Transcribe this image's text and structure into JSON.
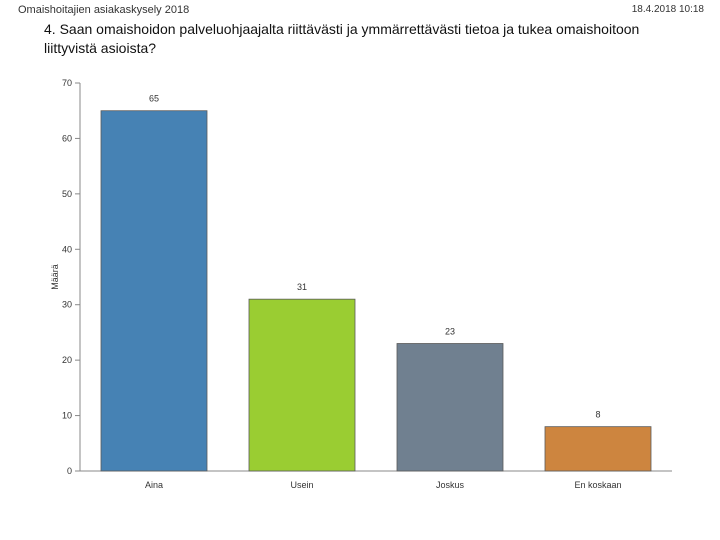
{
  "header": {
    "survey_name": "Omaishoitajien asiakaskysely 2018",
    "date": "18.4.2018 10:18"
  },
  "chart_data": {
    "type": "bar",
    "title": "4. Saan omaishoidon palveluohjaajalta riittävästi ja ymmärrettävästi tietoa ja tukea omaishoitoon liittyvistä asioista?",
    "xlabel": "",
    "ylabel": "Määrä",
    "ylim": [
      0,
      70
    ],
    "yticks": [
      0,
      10,
      20,
      30,
      40,
      50,
      60,
      70
    ],
    "grid": false,
    "categories": [
      "Aina",
      "Usein",
      "Joskus",
      "En koskaan"
    ],
    "values": [
      65,
      31,
      23,
      8
    ],
    "colors": [
      "#4682b4",
      "#9acd32",
      "#708090",
      "#cd853f"
    ]
  }
}
